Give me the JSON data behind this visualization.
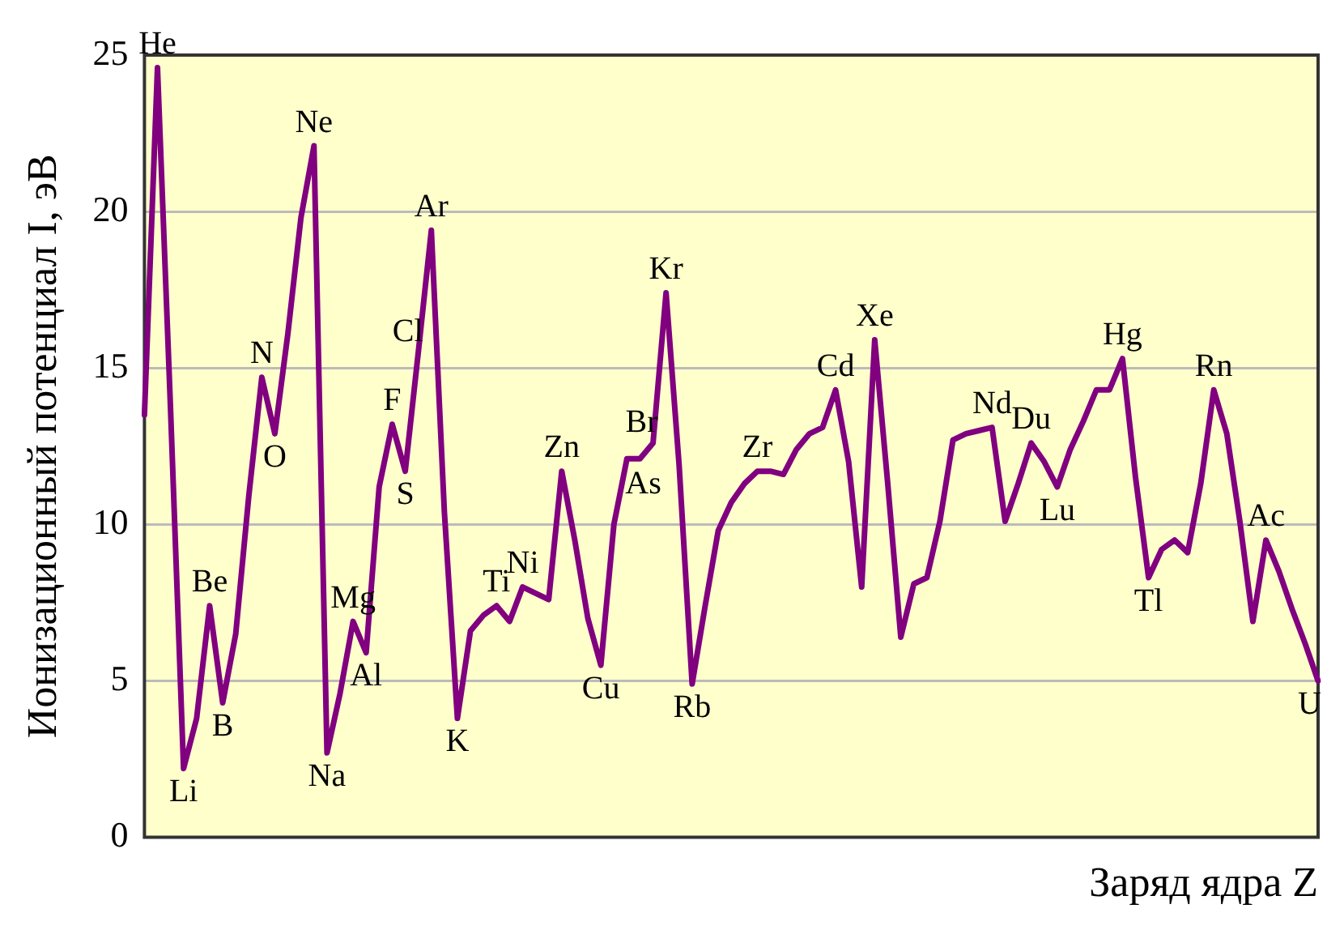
{
  "chart_data": {
    "type": "line",
    "xlabel": "Заряд ядра Z",
    "ylabel": "Ионизационный потенциал I, эВ",
    "categories": [
      null,
      null,
      null,
      null,
      null,
      null,
      null,
      null,
      null,
      null,
      null,
      null,
      null,
      null,
      null,
      null,
      null,
      null,
      null,
      null,
      null,
      null,
      null,
      null,
      null,
      null,
      null,
      null,
      null,
      null,
      null,
      null,
      null,
      null,
      null,
      null,
      null,
      null,
      null,
      null,
      null,
      null,
      null,
      null,
      null,
      null,
      null,
      null,
      null,
      null,
      null,
      null,
      null,
      null,
      null,
      null,
      null,
      null,
      null,
      null,
      null,
      null,
      null,
      null,
      null,
      null,
      null,
      null,
      null,
      null,
      null,
      null,
      null,
      null,
      null,
      null,
      null,
      null,
      null,
      null,
      null,
      null,
      null,
      null,
      null,
      null,
      null,
      null,
      null,
      null,
      null
    ],
    "series": [
      {
        "color": "#800080",
        "values": [
          13.5,
          24.6,
          13.7,
          2.2,
          3.8,
          7.4,
          4.3,
          6.5,
          10.9,
          14.7,
          12.9,
          16.1,
          19.8,
          22.1,
          2.7,
          4.6,
          6.9,
          5.9,
          11.2,
          13.2,
          11.7,
          15.5,
          19.4,
          10.4,
          3.8,
          6.6,
          7.1,
          7.4,
          6.9,
          8.0,
          7.8,
          7.6,
          11.7,
          9.5,
          7.0,
          5.5,
          10.0,
          12.1,
          12.1,
          12.6,
          17.4,
          11.9,
          4.9,
          7.4,
          9.8,
          10.7,
          11.3,
          11.7,
          11.7,
          11.6,
          12.4,
          12.9,
          13.1,
          14.3,
          12.0,
          8.0,
          15.9,
          11.3,
          6.4,
          8.1,
          8.3,
          10.1,
          12.7,
          12.9,
          13.0,
          13.1,
          10.1,
          11.3,
          12.6,
          12.0,
          11.2,
          12.4,
          13.3,
          14.3,
          14.3,
          15.3,
          11.5,
          8.3,
          9.2,
          9.5,
          9.1,
          11.3,
          14.3,
          12.9,
          10.1,
          6.9,
          9.5,
          8.5,
          7.3,
          6.2,
          5.0
        ]
      }
    ],
    "ylim": [
      0,
      25
    ],
    "yticks": [
      0,
      5,
      10,
      15,
      20,
      25
    ],
    "grid": "y",
    "tick_labels": "y",
    "marker": "none",
    "line_style": "solid",
    "legend": false,
    "annotations": [
      {
        "text": "He",
        "y": 24.6
      },
      {
        "text": "Li",
        "y": 2.2
      },
      {
        "text": "Be",
        "y": 7.4
      },
      {
        "text": "B",
        "y": 4.3
      },
      {
        "text": "N",
        "y": 14.7
      },
      {
        "text": "O",
        "y": 12.9
      },
      {
        "text": "Ne",
        "y": 22.1
      },
      {
        "text": "Na",
        "y": 2.7
      },
      {
        "text": "Mg",
        "y": 6.9
      },
      {
        "text": "Al",
        "y": 5.9
      },
      {
        "text": "F",
        "y": 13.2
      },
      {
        "text": "S",
        "y": 11.7
      },
      {
        "text": "Cl",
        "y": 15.5
      },
      {
        "text": "Ar",
        "y": 19.4
      },
      {
        "text": "K",
        "y": 3.8
      },
      {
        "text": "Ti",
        "y": 7.4
      },
      {
        "text": "Ni",
        "y": 8.0
      },
      {
        "text": "Zn",
        "y": 11.7
      },
      {
        "text": "Cu",
        "y": 5.5
      },
      {
        "text": "As",
        "y": 12.1
      },
      {
        "text": "Br",
        "y": 12.6
      },
      {
        "text": "Kr",
        "y": 17.4
      },
      {
        "text": "Rb",
        "y": 4.9
      },
      {
        "text": "Zr",
        "y": 11.7
      },
      {
        "text": "Cd",
        "y": 14.3
      },
      {
        "text": "Xe",
        "y": 15.9
      },
      {
        "text": "Nd",
        "y": 13.1
      },
      {
        "text": "Du",
        "y": 12.6
      },
      {
        "text": "Lu",
        "y": 11.2
      },
      {
        "text": "Hg",
        "y": 15.3
      },
      {
        "text": "Tl",
        "y": 8.3
      },
      {
        "text": "Rn",
        "y": 14.3
      },
      {
        "text": "Ac",
        "y": 9.5
      },
      {
        "text": "U",
        "y": 5.0
      }
    ]
  }
}
